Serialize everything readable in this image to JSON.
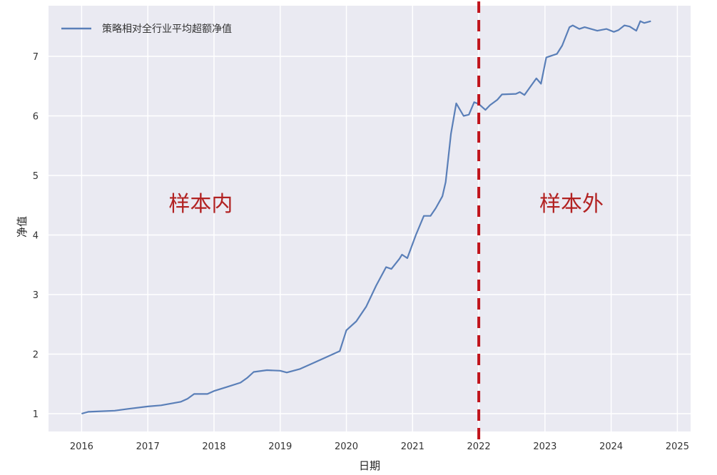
{
  "chart_data": {
    "type": "line",
    "title": "",
    "xlabel": "日期",
    "ylabel": "净值",
    "xlim": [
      2015.5,
      2025.2
    ],
    "ylim": [
      0.7,
      7.85
    ],
    "xticks": [
      "2016",
      "2017",
      "2018",
      "2019",
      "2020",
      "2021",
      "2022",
      "2023",
      "2024",
      "2025"
    ],
    "yticks": [
      "1",
      "2",
      "3",
      "4",
      "5",
      "6",
      "7"
    ],
    "grid": true,
    "legend_position": "top-left",
    "background_color": "#eaeaf2",
    "series": [
      {
        "name": "策略相对全行业平均超额净值",
        "color": "#5a7fb8",
        "x": [
          2016.0,
          2016.1,
          2016.5,
          2016.7,
          2017.0,
          2017.2,
          2017.5,
          2017.6,
          2017.7,
          2017.9,
          2018.0,
          2018.2,
          2018.4,
          2018.5,
          2018.6,
          2018.8,
          2019.0,
          2019.1,
          2019.3,
          2019.5,
          2019.7,
          2019.9,
          2020.0,
          2020.15,
          2020.3,
          2020.45,
          2020.6,
          2020.68,
          2020.8,
          2020.84,
          2020.92,
          2021.05,
          2021.17,
          2021.27,
          2021.35,
          2021.45,
          2021.5,
          2021.58,
          2021.66,
          2021.77,
          2021.85,
          2021.93,
          2022.0,
          2022.1,
          2022.17,
          2022.28,
          2022.35,
          2022.56,
          2022.62,
          2022.69,
          2022.87,
          2022.94,
          2023.02,
          2023.18,
          2023.26,
          2023.37,
          2023.42,
          2023.52,
          2023.6,
          2023.79,
          2023.93,
          2024.04,
          2024.11,
          2024.2,
          2024.28,
          2024.38,
          2024.44,
          2024.5,
          2024.6
        ],
        "y": [
          1.0,
          1.03,
          1.05,
          1.08,
          1.12,
          1.14,
          1.2,
          1.25,
          1.33,
          1.33,
          1.38,
          1.45,
          1.52,
          1.6,
          1.7,
          1.73,
          1.72,
          1.69,
          1.75,
          1.85,
          1.95,
          2.05,
          2.4,
          2.55,
          2.8,
          3.15,
          3.46,
          3.43,
          3.6,
          3.67,
          3.61,
          4.0,
          4.32,
          4.32,
          4.45,
          4.65,
          4.89,
          5.7,
          6.21,
          6.0,
          6.02,
          6.23,
          6.2,
          6.1,
          6.18,
          6.27,
          6.36,
          6.37,
          6.4,
          6.35,
          6.63,
          6.54,
          6.98,
          7.04,
          7.18,
          7.49,
          7.52,
          7.46,
          7.49,
          7.43,
          7.46,
          7.41,
          7.44,
          7.52,
          7.5,
          7.43,
          7.59,
          7.56,
          7.59
        ]
      }
    ],
    "vline": {
      "x": 2022.0,
      "color": "#c0141c",
      "style": "dashed"
    },
    "annotations": [
      {
        "text": "样本内",
        "x": 2017.8,
        "y": 4.4,
        "color": "#b22222"
      },
      {
        "text": "样本外",
        "x": 2023.4,
        "y": 4.4,
        "color": "#b22222"
      }
    ]
  }
}
